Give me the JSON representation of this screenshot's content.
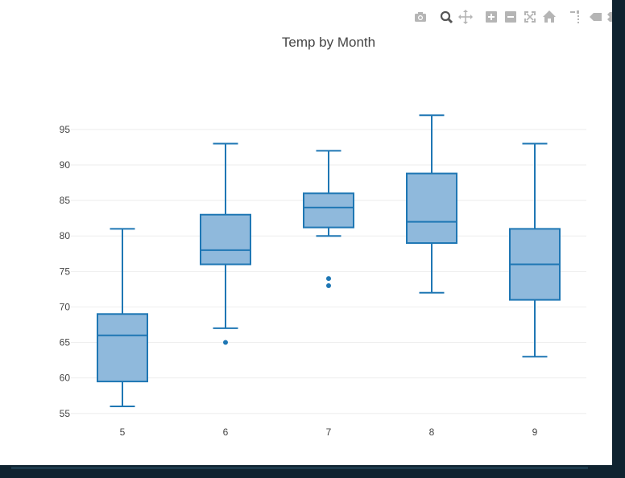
{
  "colors": {
    "box_line": "#1f77b4",
    "box_fill": "#8fb9dc",
    "grid": "#eeeeee",
    "text": "#444444",
    "modebar_icon": "#b5b5b5",
    "modebar_active": "#555555",
    "frame": "#0f2330"
  },
  "modebar": {
    "buttons": [
      {
        "name": "camera-icon",
        "active": false
      },
      {
        "name": "zoom-icon",
        "active": true
      },
      {
        "name": "pan-icon",
        "active": false
      },
      {
        "name": "zoom-in-icon",
        "active": false
      },
      {
        "name": "zoom-out-icon",
        "active": false
      },
      {
        "name": "autoscale-icon",
        "active": false
      },
      {
        "name": "home-icon",
        "active": false
      },
      {
        "name": "spike-lines-icon",
        "active": false
      },
      {
        "name": "hover-closest-icon",
        "active": false
      },
      {
        "name": "hover-compare-icon",
        "active": false
      }
    ]
  },
  "chart_data": {
    "type": "box",
    "title": "Temp by Month",
    "xlabel": "",
    "ylabel": "",
    "categories": [
      "5",
      "6",
      "7",
      "8",
      "9"
    ],
    "yticks": [
      55,
      60,
      65,
      70,
      75,
      80,
      85,
      90,
      95
    ],
    "ylim": [
      53.5,
      98.5
    ],
    "grid": true,
    "boxes": [
      {
        "x": "5",
        "min": 56,
        "q1": 59.5,
        "median": 66,
        "q3": 69,
        "max": 81,
        "outliers": []
      },
      {
        "x": "6",
        "min": 67,
        "q1": 76,
        "median": 78,
        "q3": 83,
        "max": 93,
        "outliers": [
          65
        ]
      },
      {
        "x": "7",
        "min": 80,
        "q1": 81.2,
        "median": 84,
        "q3": 86,
        "max": 92,
        "outliers": [
          73,
          74
        ]
      },
      {
        "x": "8",
        "min": 72,
        "q1": 79,
        "median": 82,
        "q3": 88.8,
        "max": 97,
        "outliers": []
      },
      {
        "x": "9",
        "min": 63,
        "q1": 71,
        "median": 76,
        "q3": 81,
        "max": 93,
        "outliers": []
      }
    ]
  }
}
